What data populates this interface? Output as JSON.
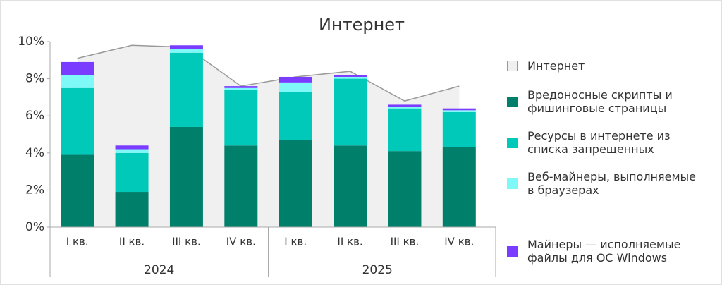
{
  "chart_data": {
    "type": "stacked_bar_area",
    "title": "Интернет",
    "categories": [
      "I кв.",
      "II кв.",
      "III кв.",
      "IV кв.",
      "I кв.",
      "II кв.",
      "III кв.",
      "IV кв."
    ],
    "groups": [
      "2024",
      "2025"
    ],
    "area": {
      "name": "Интернет",
      "color": "#f0f0f0",
      "line_color": "#999999",
      "values": [
        9.1,
        9.8,
        9.7,
        7.6,
        8.1,
        8.4,
        6.8,
        7.6
      ]
    },
    "series": [
      {
        "name": "Вредоносные скрипты и фишинговые страницы",
        "color": "#00806b",
        "values": [
          3.9,
          1.9,
          5.4,
          4.4,
          4.7,
          4.4,
          4.1,
          4.3
        ]
      },
      {
        "name": "Ресурсы в интернете из списка запрещенных",
        "color": "#00c9b9",
        "values": [
          3.6,
          2.1,
          4.0,
          3.0,
          2.6,
          3.6,
          2.3,
          1.9
        ]
      },
      {
        "name": "Веб-майнеры, выполняемые в браузерах",
        "color": "#7ff8f8",
        "values": [
          0.7,
          0.2,
          0.2,
          0.1,
          0.5,
          0.1,
          0.1,
          0.1
        ]
      },
      {
        "name": "Майнеры — исполняемые файлы для ОС Windows",
        "color": "#7a3cff",
        "values": [
          0.7,
          0.2,
          0.2,
          0.1,
          0.3,
          0.1,
          0.1,
          0.1
        ]
      }
    ],
    "ylim": [
      0,
      10
    ],
    "yticks": [
      {
        "value": 0,
        "label": "0%"
      },
      {
        "value": 2,
        "label": "2%"
      },
      {
        "value": 4,
        "label": "4%"
      },
      {
        "value": 6,
        "label": "6%"
      },
      {
        "value": 8,
        "label": "8%"
      },
      {
        "value": 10,
        "label": "10%"
      }
    ],
    "grid": false
  }
}
